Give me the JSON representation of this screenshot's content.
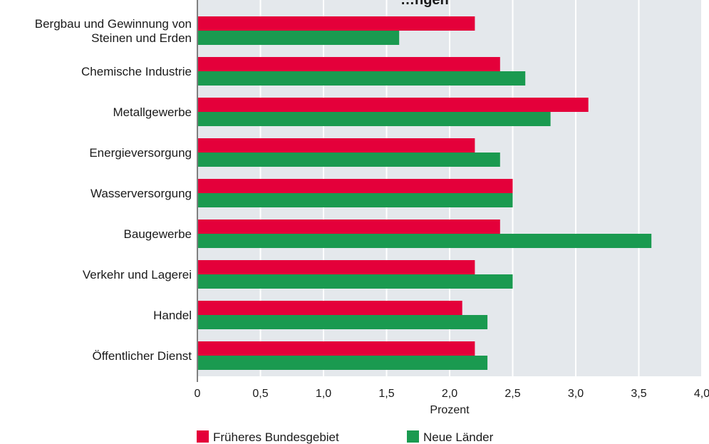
{
  "chart_data": {
    "type": "bar",
    "orientation": "horizontal",
    "title": "…ngen",
    "categories": [
      [
        "Bergbau und Gewinnung von",
        "Steinen und Erden"
      ],
      [
        "Chemische Industrie"
      ],
      [
        "Metallgewerbe"
      ],
      [
        "Energieversorgung"
      ],
      [
        "Wasserversorgung"
      ],
      [
        "Baugewerbe"
      ],
      [
        "Verkehr und Lagerei"
      ],
      [
        "Handel"
      ],
      [
        "Öffentlicher Dienst"
      ]
    ],
    "series": [
      {
        "name": "Früheres Bundesgebiet",
        "color": "#e4003a",
        "values": [
          2.2,
          2.4,
          3.1,
          2.2,
          2.5,
          2.4,
          2.2,
          2.1,
          2.2
        ]
      },
      {
        "name": "Neue Länder",
        "color": "#1a9a50",
        "values": [
          1.6,
          2.6,
          2.8,
          2.4,
          2.5,
          3.6,
          2.5,
          2.3,
          2.3
        ]
      }
    ],
    "xlabel": "Prozent",
    "xlim": [
      0,
      4.0
    ],
    "ticks": [
      "0",
      "0,5",
      "1,0",
      "1,5",
      "2,0",
      "2,5",
      "3,0",
      "3,5",
      "4,0"
    ],
    "grid": true,
    "legend_position": "bottom",
    "background_color": "#e4e8ec",
    "gridline_color": "#ffffff"
  }
}
